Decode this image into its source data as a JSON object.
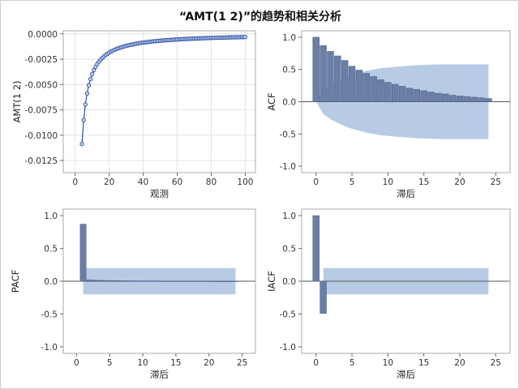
{
  "title": "“AMT(1 2)”的趋势和相关分析",
  "colors": {
    "series_line": "#2a4fa8",
    "marker_face": "#c7d3ea",
    "bar_fill": "#6b7fa6",
    "bar_edge": "#4d628c",
    "band": "#b8cbe5",
    "grid": "#e4e4e4",
    "frame": "#a8a8a8",
    "zero_line": "#555555"
  },
  "chart_data": [
    {
      "id": "trend",
      "type": "line",
      "xlabel": "观测",
      "ylabel": "AMT(1 2)",
      "xlim": [
        -7,
        106
      ],
      "ylim": [
        -0.0137,
        0.0003
      ],
      "xticks": [
        "0",
        "20",
        "40",
        "60",
        "80",
        "100"
      ],
      "yticks": [
        "0.0000",
        "-0.0025",
        "-0.0050",
        "-0.0075",
        "-0.0100",
        "-0.0125"
      ],
      "grid": true,
      "series": [
        {
          "x_start": 4,
          "x_end": 100,
          "c": 0.05
        }
      ]
    },
    {
      "id": "acf",
      "type": "bar",
      "xlabel": "滞后",
      "ylabel": "ACF",
      "xlim": [
        -2,
        27
      ],
      "ylim": [
        -1.1,
        1.1
      ],
      "xticks": [
        "0",
        "5",
        "10",
        "15",
        "20",
        "25"
      ],
      "yticks": [
        "1.0",
        "0.5",
        "0.0",
        "-0.5",
        "-1.0"
      ],
      "lags": [
        0,
        1,
        2,
        3,
        4,
        5,
        6,
        7,
        8,
        9,
        10,
        11,
        12,
        13,
        14,
        15,
        16,
        17,
        18,
        19,
        20,
        21,
        22,
        23,
        24
      ],
      "values": [
        1.0,
        0.87,
        0.78,
        0.71,
        0.64,
        0.55,
        0.49,
        0.44,
        0.39,
        0.34,
        0.3,
        0.27,
        0.24,
        0.21,
        0.19,
        0.17,
        0.15,
        0.13,
        0.12,
        0.1,
        0.09,
        0.08,
        0.07,
        0.06,
        0.05
      ],
      "band_upper": [
        0.0,
        0.19,
        0.27,
        0.33,
        0.38,
        0.42,
        0.45,
        0.48,
        0.5,
        0.52,
        0.53,
        0.54,
        0.55,
        0.56,
        0.565,
        0.57,
        0.575,
        0.578,
        0.58,
        0.58,
        0.58,
        0.58,
        0.58,
        0.58,
        0.58
      ]
    },
    {
      "id": "pacf",
      "type": "bar",
      "xlabel": "滞后",
      "ylabel": "PACF",
      "xlim": [
        -2,
        27
      ],
      "ylim": [
        -1.1,
        1.1
      ],
      "xticks": [
        "0",
        "5",
        "10",
        "15",
        "20",
        "25"
      ],
      "yticks": [
        "1.0",
        "0.5",
        "0.0",
        "-0.5",
        "-1.0"
      ],
      "lags": [
        1,
        2,
        3,
        4,
        5,
        6,
        7,
        8,
        9,
        10,
        11,
        12,
        13,
        14,
        15,
        16,
        17,
        18,
        19,
        20,
        21,
        22,
        23,
        24
      ],
      "values": [
        0.87,
        0.02,
        0.015,
        0.012,
        0.01,
        0.008,
        0.007,
        0.006,
        0.005,
        0.005,
        0.004,
        0.004,
        0.003,
        0.003,
        0.003,
        0.002,
        0.002,
        0.002,
        0.002,
        0.002,
        0.001,
        0.001,
        0.001,
        0.001
      ],
      "band": 0.2
    },
    {
      "id": "iacf",
      "type": "bar",
      "xlabel": "滞后",
      "ylabel": "IACF",
      "xlim": [
        -2,
        27
      ],
      "ylim": [
        -1.1,
        1.1
      ],
      "xticks": [
        "0",
        "5",
        "10",
        "15",
        "20",
        "25"
      ],
      "yticks": [
        "1.0",
        "0.5",
        "0.0",
        "-0.5",
        "-1.0"
      ],
      "lags": [
        0,
        1,
        2,
        3,
        4,
        5,
        6,
        7,
        8,
        9,
        10,
        11,
        12,
        13,
        14,
        15,
        16,
        17,
        18,
        19,
        20,
        21,
        22,
        23,
        24
      ],
      "values": [
        1.0,
        -0.49,
        0,
        0,
        0,
        0,
        0,
        0,
        0,
        0,
        0,
        0,
        0,
        0,
        0,
        0,
        0,
        0,
        0,
        0,
        0,
        0,
        0,
        0,
        0
      ],
      "band": 0.2
    }
  ]
}
